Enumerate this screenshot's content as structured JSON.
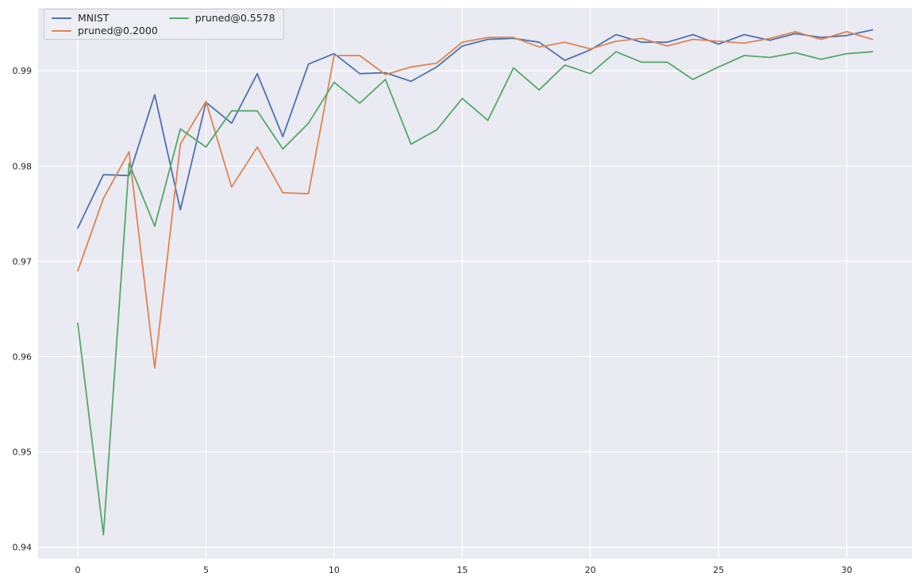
{
  "chart_data": {
    "type": "line",
    "title": "",
    "xlabel": "",
    "ylabel": "",
    "x": [
      0,
      1,
      2,
      3,
      4,
      5,
      6,
      7,
      8,
      9,
      10,
      11,
      12,
      13,
      14,
      15,
      16,
      17,
      18,
      19,
      20,
      21,
      22,
      23,
      24,
      25,
      26,
      27,
      28,
      29,
      30,
      31
    ],
    "series": [
      {
        "name": "MNIST",
        "color": "#4c72b0",
        "values": [
          0.9735,
          0.9791,
          0.979,
          0.9875,
          0.9754,
          0.9867,
          0.9845,
          0.9897,
          0.9831,
          0.9907,
          0.9918,
          0.9897,
          0.9898,
          0.9889,
          0.9904,
          0.9926,
          0.9933,
          0.9934,
          0.993,
          0.9911,
          0.9922,
          0.9938,
          0.993,
          0.993,
          0.9938,
          0.9928,
          0.9938,
          0.9932,
          0.9939,
          0.9935,
          0.9937,
          0.9943
        ]
      },
      {
        "name": "pruned@0.2000",
        "color": "#dd8452",
        "values": [
          0.969,
          0.9766,
          0.9815,
          0.9588,
          0.9823,
          0.9868,
          0.9778,
          0.982,
          0.9772,
          0.9771,
          0.9916,
          0.9916,
          0.9896,
          0.9904,
          0.9908,
          0.993,
          0.9935,
          0.9935,
          0.9925,
          0.993,
          0.9923,
          0.9931,
          0.9934,
          0.9926,
          0.9933,
          0.9931,
          0.9929,
          0.9934,
          0.9941,
          0.9933,
          0.9941,
          0.9933
        ]
      },
      {
        "name": "pruned@0.5578",
        "color": "#55a868",
        "values": [
          0.9635,
          0.9413,
          0.9803,
          0.9737,
          0.9839,
          0.982,
          0.9858,
          0.9858,
          0.9818,
          0.9845,
          0.9888,
          0.9866,
          0.9891,
          0.9823,
          0.9838,
          0.9871,
          0.9848,
          0.9903,
          0.988,
          0.9906,
          0.9897,
          0.992,
          0.9909,
          0.9909,
          0.9891,
          0.9904,
          0.9916,
          0.9914,
          0.9919,
          0.9912,
          0.9918,
          0.992
        ]
      }
    ],
    "x_ticks": [
      0,
      5,
      10,
      15,
      20,
      25,
      30
    ],
    "y_tick_labels": [
      "0.94",
      "0.95",
      "0.96",
      "0.97",
      "0.98",
      "0.99"
    ],
    "xlim": [
      -1.55,
      32.55
    ],
    "ylim": [
      0.9388,
      0.9966
    ],
    "grid": true,
    "legend": {
      "position": "upper left",
      "columns": 2,
      "labels": [
        "MNIST",
        "pruned@0.2000",
        "pruned@0.5578"
      ]
    },
    "colors": {
      "figure_background": "#ffffff",
      "axes_background": "#eaeaf2",
      "grid": "#ffffff",
      "tick_text": "#262626",
      "legend_border": "#cccccc",
      "legend_background": "#ededf4"
    }
  }
}
